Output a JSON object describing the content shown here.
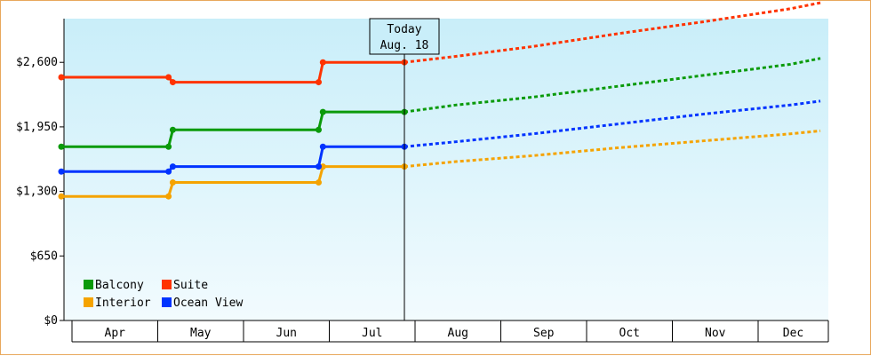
{
  "chart_data": {
    "type": "line",
    "title": "",
    "xlabel": "",
    "ylabel": "",
    "ylim": [
      0,
      3000
    ],
    "y_ticks": [
      {
        "value": 0,
        "label": "$0"
      },
      {
        "value": 650,
        "label": "$650"
      },
      {
        "value": 1300,
        "label": "$1,300"
      },
      {
        "value": 1950,
        "label": "$1,950"
      },
      {
        "value": 2600,
        "label": "$2,600"
      }
    ],
    "months": [
      "Apr",
      "May",
      "Jun",
      "Jul",
      "Aug",
      "Sep",
      "Oct",
      "Nov",
      "Dec"
    ],
    "today": {
      "line1": "Today",
      "line2": "Aug. 18",
      "x": 4.0
    },
    "grid": false,
    "legend_position": "bottom-left",
    "series": [
      {
        "name": "Balcony",
        "color": "#0a9a0a",
        "points": [
          [
            0.0,
            1750
          ],
          [
            1.25,
            1750
          ],
          [
            1.3,
            1920
          ],
          [
            3.0,
            1920
          ],
          [
            3.05,
            2100
          ],
          [
            4.0,
            2100
          ]
        ],
        "forecast": [
          [
            4.0,
            2100
          ],
          [
            4.6,
            2170
          ],
          [
            5.5,
            2250
          ],
          [
            6.5,
            2360
          ],
          [
            7.5,
            2470
          ],
          [
            8.5,
            2580
          ],
          [
            8.85,
            2640
          ]
        ]
      },
      {
        "name": "Suite",
        "color": "#ff3300",
        "points": [
          [
            0.0,
            2450
          ],
          [
            1.25,
            2450
          ],
          [
            1.3,
            2400
          ],
          [
            3.0,
            2400
          ],
          [
            3.05,
            2600
          ],
          [
            4.0,
            2600
          ]
        ],
        "forecast": [
          [
            4.0,
            2600
          ],
          [
            4.6,
            2660
          ],
          [
            5.5,
            2760
          ],
          [
            6.5,
            2890
          ],
          [
            7.5,
            3010
          ],
          [
            8.5,
            3140
          ],
          [
            8.85,
            3200
          ]
        ]
      },
      {
        "name": "Interior",
        "color": "#f5a300",
        "points": [
          [
            0.0,
            1250
          ],
          [
            1.25,
            1250
          ],
          [
            1.3,
            1390
          ],
          [
            3.0,
            1390
          ],
          [
            3.05,
            1550
          ],
          [
            4.0,
            1550
          ]
        ],
        "forecast": [
          [
            4.0,
            1550
          ],
          [
            4.6,
            1600
          ],
          [
            5.5,
            1660
          ],
          [
            6.5,
            1740
          ],
          [
            7.5,
            1810
          ],
          [
            8.5,
            1880
          ],
          [
            8.85,
            1910
          ]
        ]
      },
      {
        "name": "Ocean View",
        "color": "#0033ff",
        "points": [
          [
            0.0,
            1500
          ],
          [
            1.25,
            1500
          ],
          [
            1.3,
            1550
          ],
          [
            3.0,
            1550
          ],
          [
            3.05,
            1750
          ],
          [
            4.0,
            1750
          ]
        ],
        "forecast": [
          [
            4.0,
            1750
          ],
          [
            4.6,
            1800
          ],
          [
            5.5,
            1880
          ],
          [
            6.5,
            1980
          ],
          [
            7.5,
            2080
          ],
          [
            8.5,
            2170
          ],
          [
            8.85,
            2210
          ]
        ]
      }
    ]
  }
}
